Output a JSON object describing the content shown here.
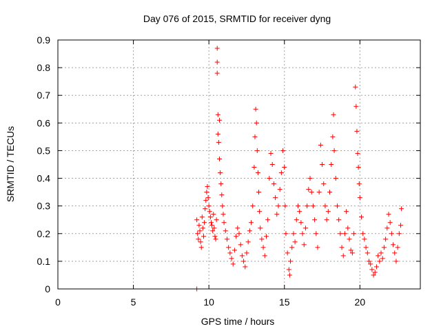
{
  "chart_data": {
    "type": "scatter",
    "title": "Day 076 of 2015, SRMTID for receiver dyng",
    "xlabel": "GPS time / hours",
    "ylabel": "SRMTID / TECUs",
    "xlim": [
      0,
      24
    ],
    "ylim": [
      0,
      0.9
    ],
    "xticks": [
      0,
      5,
      10,
      15,
      20
    ],
    "yticks": [
      0,
      0.1,
      0.2,
      0.3,
      0.4,
      0.5,
      0.6,
      0.7,
      0.8,
      0.9
    ],
    "grid": true,
    "marker": "+",
    "color": "#ff0000",
    "series": [
      {
        "name": "SRMTID",
        "points": [
          [
            9.2,
            0.0
          ],
          [
            9.2,
            0.25
          ],
          [
            9.25,
            0.2
          ],
          [
            9.3,
            0.18
          ],
          [
            9.35,
            0.23
          ],
          [
            9.4,
            0.21
          ],
          [
            9.45,
            0.17
          ],
          [
            9.5,
            0.15
          ],
          [
            9.55,
            0.26
          ],
          [
            9.6,
            0.22
          ],
          [
            9.65,
            0.19
          ],
          [
            9.7,
            0.24
          ],
          [
            9.75,
            0.29
          ],
          [
            9.8,
            0.32
          ],
          [
            9.85,
            0.35
          ],
          [
            9.9,
            0.37
          ],
          [
            9.95,
            0.33
          ],
          [
            10.0,
            0.3
          ],
          [
            10.05,
            0.28
          ],
          [
            10.1,
            0.26
          ],
          [
            10.15,
            0.24
          ],
          [
            10.2,
            0.23
          ],
          [
            10.25,
            0.21
          ],
          [
            10.3,
            0.27
          ],
          [
            10.35,
            0.22
          ],
          [
            10.4,
            0.19
          ],
          [
            10.45,
            0.18
          ],
          [
            10.5,
            0.25
          ],
          [
            10.55,
            0.87
          ],
          [
            10.55,
            0.82
          ],
          [
            10.55,
            0.78
          ],
          [
            10.6,
            0.63
          ],
          [
            10.6,
            0.56
          ],
          [
            10.65,
            0.53
          ],
          [
            10.7,
            0.61
          ],
          [
            10.7,
            0.47
          ],
          [
            10.75,
            0.42
          ],
          [
            10.8,
            0.38
          ],
          [
            10.85,
            0.34
          ],
          [
            10.9,
            0.3
          ],
          [
            10.95,
            0.27
          ],
          [
            11.0,
            0.24
          ],
          [
            11.1,
            0.21
          ],
          [
            11.2,
            0.18
          ],
          [
            11.3,
            0.15
          ],
          [
            11.4,
            0.13
          ],
          [
            11.5,
            0.11
          ],
          [
            11.6,
            0.09
          ],
          [
            11.7,
            0.14
          ],
          [
            11.8,
            0.19
          ],
          [
            11.9,
            0.22
          ],
          [
            12.0,
            0.2
          ],
          [
            12.1,
            0.16
          ],
          [
            12.2,
            0.12
          ],
          [
            12.3,
            0.1
          ],
          [
            12.4,
            0.08
          ],
          [
            12.5,
            0.13
          ],
          [
            12.6,
            0.17
          ],
          [
            12.7,
            0.21
          ],
          [
            12.8,
            0.24
          ],
          [
            12.9,
            0.3
          ],
          [
            13.0,
            0.44
          ],
          [
            13.05,
            0.55
          ],
          [
            13.1,
            0.65
          ],
          [
            13.15,
            0.6
          ],
          [
            13.2,
            0.5
          ],
          [
            13.25,
            0.42
          ],
          [
            13.3,
            0.35
          ],
          [
            13.35,
            0.28
          ],
          [
            13.4,
            0.22
          ],
          [
            13.5,
            0.18
          ],
          [
            13.6,
            0.15
          ],
          [
            13.7,
            0.12
          ],
          [
            13.8,
            0.19
          ],
          [
            13.9,
            0.25
          ],
          [
            14.0,
            0.4
          ],
          [
            14.1,
            0.49
          ],
          [
            14.2,
            0.45
          ],
          [
            14.3,
            0.38
          ],
          [
            14.4,
            0.33
          ],
          [
            14.5,
            0.27
          ],
          [
            14.6,
            0.3
          ],
          [
            14.7,
            0.36
          ],
          [
            14.8,
            0.42
          ],
          [
            14.9,
            0.5
          ],
          [
            15.0,
            0.44
          ],
          [
            15.05,
            0.3
          ],
          [
            15.1,
            0.2
          ],
          [
            15.2,
            0.13
          ],
          [
            15.3,
            0.07
          ],
          [
            15.35,
            0.05
          ],
          [
            15.4,
            0.1
          ],
          [
            15.5,
            0.15
          ],
          [
            15.6,
            0.2
          ],
          [
            15.7,
            0.17
          ],
          [
            15.8,
            0.25
          ],
          [
            15.9,
            0.3
          ],
          [
            16.0,
            0.28
          ],
          [
            16.1,
            0.24
          ],
          [
            16.2,
            0.2
          ],
          [
            16.3,
            0.16
          ],
          [
            16.4,
            0.22
          ],
          [
            16.5,
            0.3
          ],
          [
            16.6,
            0.36
          ],
          [
            16.7,
            0.4
          ],
          [
            16.8,
            0.35
          ],
          [
            16.9,
            0.3
          ],
          [
            17.0,
            0.25
          ],
          [
            17.1,
            0.2
          ],
          [
            17.2,
            0.15
          ],
          [
            17.3,
            0.35
          ],
          [
            17.4,
            0.52
          ],
          [
            17.5,
            0.45
          ],
          [
            17.6,
            0.38
          ],
          [
            17.7,
            0.3
          ],
          [
            17.8,
            0.25
          ],
          [
            17.9,
            0.28
          ],
          [
            18.0,
            0.35
          ],
          [
            18.1,
            0.45
          ],
          [
            18.2,
            0.55
          ],
          [
            18.25,
            0.63
          ],
          [
            18.3,
            0.5
          ],
          [
            18.4,
            0.4
          ],
          [
            18.5,
            0.3
          ],
          [
            18.6,
            0.25
          ],
          [
            18.7,
            0.2
          ],
          [
            18.8,
            0.15
          ],
          [
            18.9,
            0.12
          ],
          [
            19.0,
            0.2
          ],
          [
            19.1,
            0.28
          ],
          [
            19.2,
            0.22
          ],
          [
            19.3,
            0.18
          ],
          [
            19.4,
            0.14
          ],
          [
            19.5,
            0.13
          ],
          [
            19.6,
            0.2
          ],
          [
            19.7,
            0.73
          ],
          [
            19.75,
            0.66
          ],
          [
            19.8,
            0.57
          ],
          [
            19.85,
            0.49
          ],
          [
            19.9,
            0.44
          ],
          [
            19.95,
            0.38
          ],
          [
            20.0,
            0.33
          ],
          [
            20.1,
            0.26
          ],
          [
            20.2,
            0.2
          ],
          [
            20.3,
            0.18
          ],
          [
            20.4,
            0.15
          ],
          [
            20.5,
            0.13
          ],
          [
            20.6,
            0.1
          ],
          [
            20.7,
            0.09
          ],
          [
            20.8,
            0.07
          ],
          [
            20.9,
            0.05
          ],
          [
            21.0,
            0.06
          ],
          [
            21.1,
            0.08
          ],
          [
            21.2,
            0.12
          ],
          [
            21.3,
            0.1
          ],
          [
            21.4,
            0.13
          ],
          [
            21.5,
            0.11
          ],
          [
            21.6,
            0.15
          ],
          [
            21.7,
            0.18
          ],
          [
            21.8,
            0.22
          ],
          [
            21.9,
            0.27
          ],
          [
            22.0,
            0.24
          ],
          [
            22.1,
            0.2
          ],
          [
            22.2,
            0.16
          ],
          [
            22.3,
            0.13
          ],
          [
            22.4,
            0.1
          ],
          [
            22.5,
            0.15
          ],
          [
            22.6,
            0.2
          ],
          [
            22.7,
            0.23
          ],
          [
            22.75,
            0.29
          ]
        ]
      }
    ]
  }
}
